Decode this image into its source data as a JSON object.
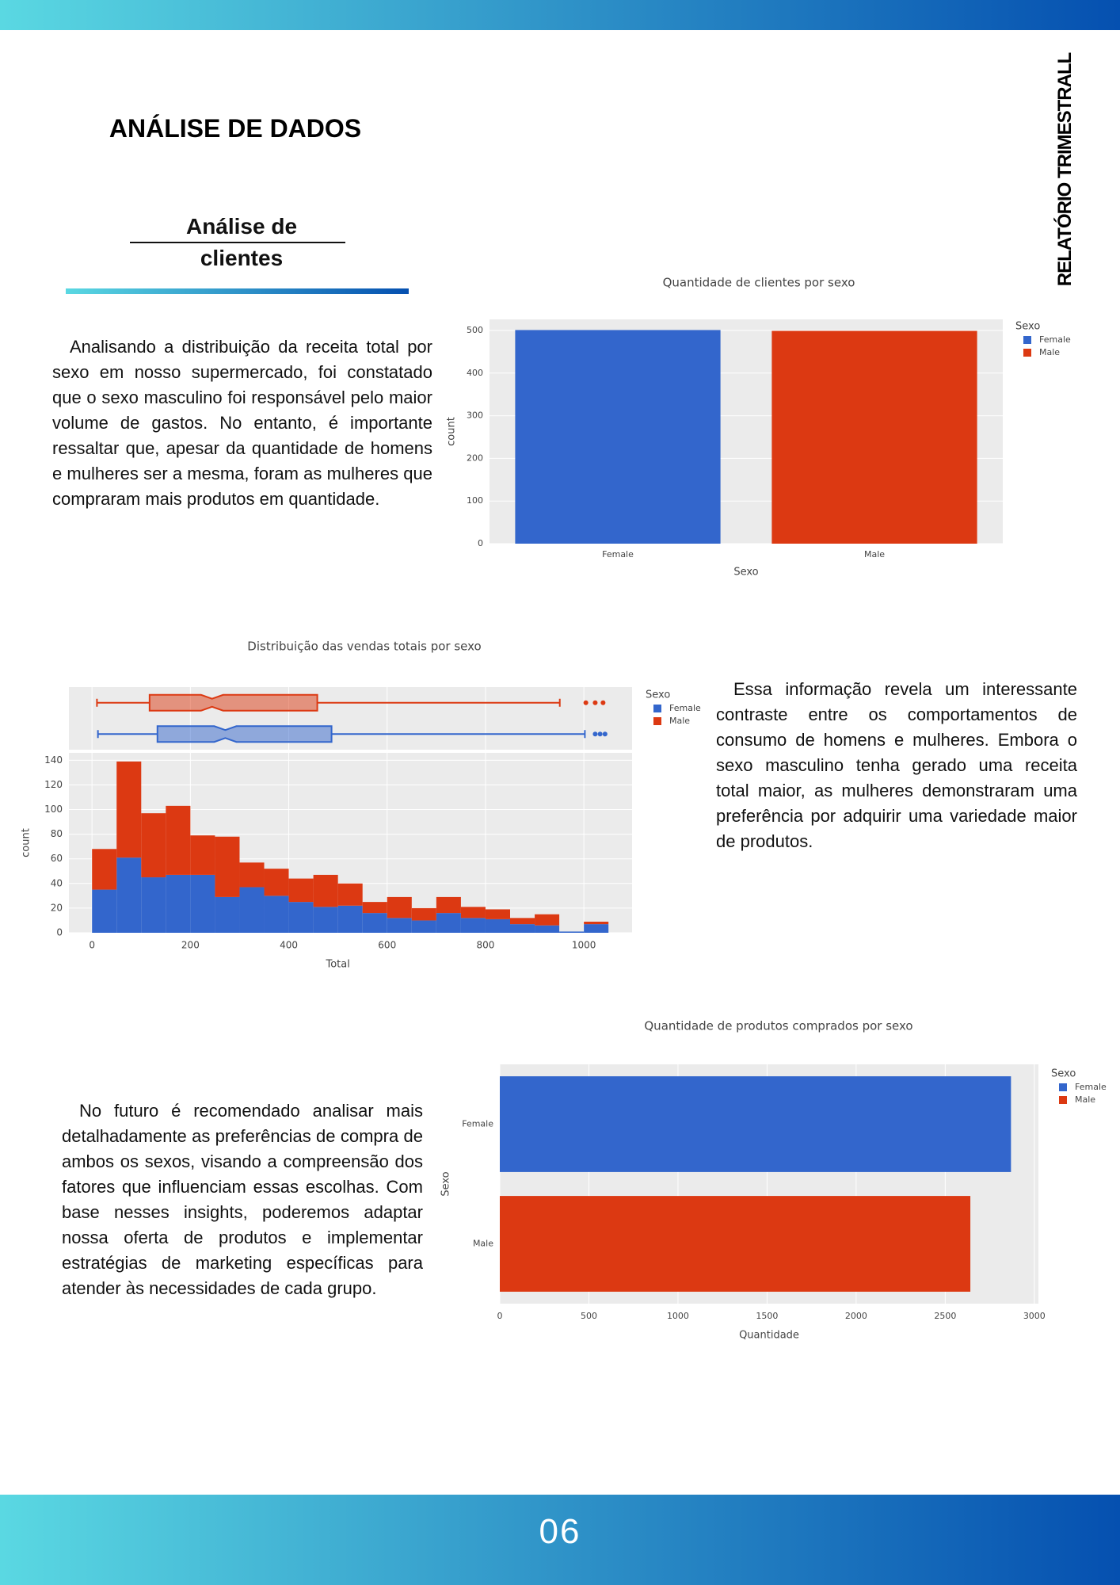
{
  "header": {
    "title": "ANÁLISE DE DADOS",
    "subtitle": "Análise de clientes",
    "side_label": "RELATÓRIO TRIMESTRALL"
  },
  "paragraphs": [
    "Analisando a distribuição da receita total por sexo em nosso supermercado, foi constatado que o sexo masculino foi responsável pelo maior volume de gastos. No entanto, é importante ressaltar que, apesar da quantidade de homens e mulheres ser a mesma, foram as mulheres que compraram mais produtos em quantidade.",
    "Essa informação revela um interessante contraste entre os comportamentos de consumo de homens e mulheres. Embora o sexo masculino tenha gerado uma receita total maior, as mulheres demonstraram uma preferência por adquirir uma variedade maior de produtos.",
    "No futuro é recomendado analisar mais detalhadamente as preferências de compra de ambos os sexos, visando a compreensão dos fatores que influenciam essas escolhas. Com base nesses insights, poderemos adaptar nossa oferta de produtos e implementar estratégias de marketing específicas para atender às necessidades de cada grupo."
  ],
  "chart_data": [
    {
      "type": "bar",
      "orientation": "v",
      "title": "Quantidade de clientes por sexo",
      "x_label": "Sexo",
      "y_label": "count",
      "legend_title": "Sexo",
      "categories": [
        "Female",
        "Male"
      ],
      "series": [
        {
          "name": "Female",
          "color": "#3366cc",
          "values": [
            501,
            null
          ]
        },
        {
          "name": "Male",
          "color": "#dc3912",
          "values": [
            null,
            499
          ]
        }
      ],
      "ylim": [
        0,
        526
      ],
      "yticks": [
        0,
        100,
        200,
        300,
        400,
        500
      ],
      "grid": true
    },
    {
      "type": "histogram",
      "title": "Distribuição das vendas totais por sexo",
      "x_label": "Total",
      "y_label": "count",
      "legend_title": "Sexo",
      "bins": [
        0,
        50,
        100,
        150,
        200,
        250,
        300,
        350,
        400,
        450,
        500,
        550,
        600,
        650,
        700,
        750,
        800,
        850,
        900,
        950,
        1000,
        1050
      ],
      "series": [
        {
          "name": "Female",
          "color": "#3366cc",
          "values": [
            35,
            61,
            45,
            47,
            47,
            29,
            37,
            30,
            25,
            21,
            22,
            16,
            12,
            10,
            16,
            12,
            11,
            7,
            6,
            1,
            7
          ],
          "box": {
            "min": 12,
            "q1": 133,
            "median": 271,
            "q3": 487,
            "max": 1002,
            "outliers": [
              1023,
              1033,
              1043
            ]
          }
        },
        {
          "name": "Male",
          "color": "#dc3912",
          "values": [
            33,
            78,
            52,
            56,
            32,
            49,
            20,
            22,
            19,
            26,
            18,
            9,
            17,
            10,
            13,
            9,
            8,
            5,
            9,
            0,
            2
          ],
          "box": {
            "min": 10,
            "q1": 117,
            "median": 244,
            "q3": 458,
            "max": 951,
            "outliers": [
              1004,
              1023,
              1039
            ]
          }
        }
      ],
      "xlim": [
        -47,
        1098
      ],
      "xticks": [
        0,
        200,
        400,
        600,
        800,
        1000
      ],
      "ylim": [
        0,
        146
      ],
      "yticks": [
        0,
        20,
        40,
        60,
        80,
        100,
        120,
        140
      ],
      "grid": true
    },
    {
      "type": "bar",
      "orientation": "h",
      "title": "Quantidade de produtos comprados por sexo",
      "x_label": "Quantidade",
      "y_label": "Sexo",
      "legend_title": "Sexo",
      "categories": [
        "Female",
        "Male"
      ],
      "series": [
        {
          "name": "Female",
          "color": "#3366cc",
          "values": [
            2869,
            null
          ]
        },
        {
          "name": "Male",
          "color": "#dc3912",
          "values": [
            null,
            2641
          ]
        }
      ],
      "xlim": [
        0,
        3023
      ],
      "xticks": [
        0,
        500,
        1000,
        1500,
        2000,
        2500,
        3000
      ],
      "grid": true
    }
  ],
  "footer": {
    "page_number": "06"
  }
}
